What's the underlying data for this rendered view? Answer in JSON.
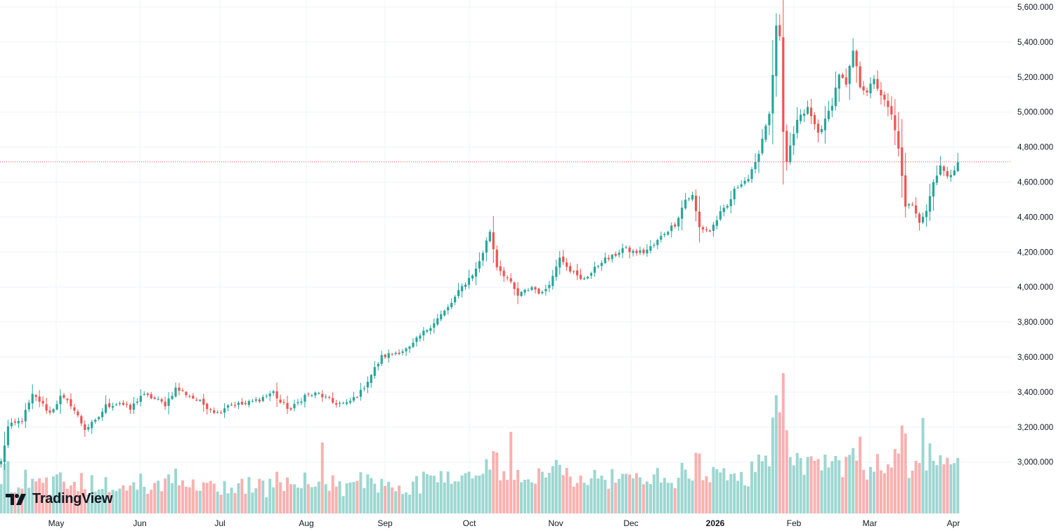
{
  "brand": {
    "name": "TradingView",
    "logo_icon": "tradingview-logo-icon"
  },
  "colors": {
    "up": "#26a69a",
    "down": "#ef5350",
    "up_volume": "#26a69a",
    "down_volume": "#ef5350",
    "last_price_line": "#ef5350",
    "grid": "#f0f3fa",
    "text": "#131722"
  },
  "chart_data": {
    "type": "candlestick",
    "title": "",
    "xlabel": "",
    "ylabel": "",
    "ylim": [
      2800000,
      5650000
    ],
    "y_ticks": [
      "5,600.000",
      "5,400.000",
      "5,200.000",
      "5,000.000",
      "4,800.000",
      "4,600.000",
      "4,400.000",
      "4,200.000",
      "4,000.000",
      "3,800.000",
      "3,600.000",
      "3,400.000",
      "3,200.000",
      "3,000.000"
    ],
    "x_labels": [
      "May",
      "Jun",
      "Jul",
      "Aug",
      "Sep",
      "Oct",
      "Nov",
      "Dec",
      "2026",
      "Feb",
      "Mar",
      "Apr"
    ],
    "grid": true,
    "last_price": 4715000,
    "legend": "none",
    "waypoints_close": [
      [
        0,
        3000
      ],
      [
        2,
        3200
      ],
      [
        6,
        3240
      ],
      [
        9,
        3380
      ],
      [
        11,
        3350
      ],
      [
        14,
        3280
      ],
      [
        17,
        3370
      ],
      [
        20,
        3330
      ],
      [
        24,
        3190
      ],
      [
        27,
        3230
      ],
      [
        30,
        3320
      ],
      [
        34,
        3340
      ],
      [
        37,
        3300
      ],
      [
        40,
        3380
      ],
      [
        43,
        3370
      ],
      [
        47,
        3330
      ],
      [
        50,
        3420
      ],
      [
        53,
        3390
      ],
      [
        58,
        3330
      ],
      [
        62,
        3280
      ],
      [
        65,
        3330
      ],
      [
        70,
        3330
      ],
      [
        74,
        3360
      ],
      [
        78,
        3400
      ],
      [
        80,
        3340
      ],
      [
        83,
        3300
      ],
      [
        87,
        3380
      ],
      [
        91,
        3390
      ],
      [
        95,
        3340
      ],
      [
        99,
        3330
      ],
      [
        103,
        3400
      ],
      [
        106,
        3500
      ],
      [
        109,
        3600
      ],
      [
        112,
        3620
      ],
      [
        117,
        3650
      ],
      [
        120,
        3720
      ],
      [
        124,
        3800
      ],
      [
        128,
        3880
      ],
      [
        132,
        4000
      ],
      [
        136,
        4100
      ],
      [
        138,
        4200
      ],
      [
        140,
        4320
      ],
      [
        142,
        4120
      ],
      [
        145,
        4050
      ],
      [
        148,
        3950
      ],
      [
        152,
        4000
      ],
      [
        155,
        3960
      ],
      [
        158,
        4060
      ],
      [
        160,
        4180
      ],
      [
        163,
        4100
      ],
      [
        166,
        4040
      ],
      [
        169,
        4080
      ],
      [
        172,
        4150
      ],
      [
        175,
        4170
      ],
      [
        178,
        4220
      ],
      [
        181,
        4200
      ],
      [
        184,
        4200
      ],
      [
        187,
        4240
      ],
      [
        190,
        4310
      ],
      [
        193,
        4360
      ],
      [
        196,
        4500
      ],
      [
        198,
        4520
      ],
      [
        200,
        4340
      ],
      [
        203,
        4320
      ],
      [
        206,
        4420
      ],
      [
        208,
        4460
      ],
      [
        210,
        4550
      ],
      [
        212,
        4600
      ],
      [
        214,
        4620
      ],
      [
        216,
        4700
      ],
      [
        218,
        4850
      ],
      [
        220,
        5000
      ],
      [
        221,
        5200
      ],
      [
        222,
        5500
      ],
      [
        223,
        5420
      ],
      [
        224,
        4880
      ],
      [
        225,
        4700
      ],
      [
        226,
        4800
      ],
      [
        228,
        4950
      ],
      [
        231,
        5020
      ],
      [
        234,
        4880
      ],
      [
        236,
        4950
      ],
      [
        238,
        5050
      ],
      [
        240,
        5220
      ],
      [
        242,
        5150
      ],
      [
        244,
        5350
      ],
      [
        246,
        5150
      ],
      [
        248,
        5120
      ],
      [
        250,
        5180
      ],
      [
        253,
        5060
      ],
      [
        255,
        4980
      ],
      [
        257,
        4800
      ],
      [
        259,
        4450
      ],
      [
        261,
        4480
      ],
      [
        263,
        4380
      ],
      [
        265,
        4440
      ],
      [
        267,
        4600
      ],
      [
        269,
        4700
      ],
      [
        271,
        4620
      ],
      [
        273,
        4680
      ],
      [
        274,
        4720
      ]
    ],
    "volume_note": "volume bars colored by candle direction; spikes near Aug, mid-Oct, late Jan, late Mar"
  }
}
